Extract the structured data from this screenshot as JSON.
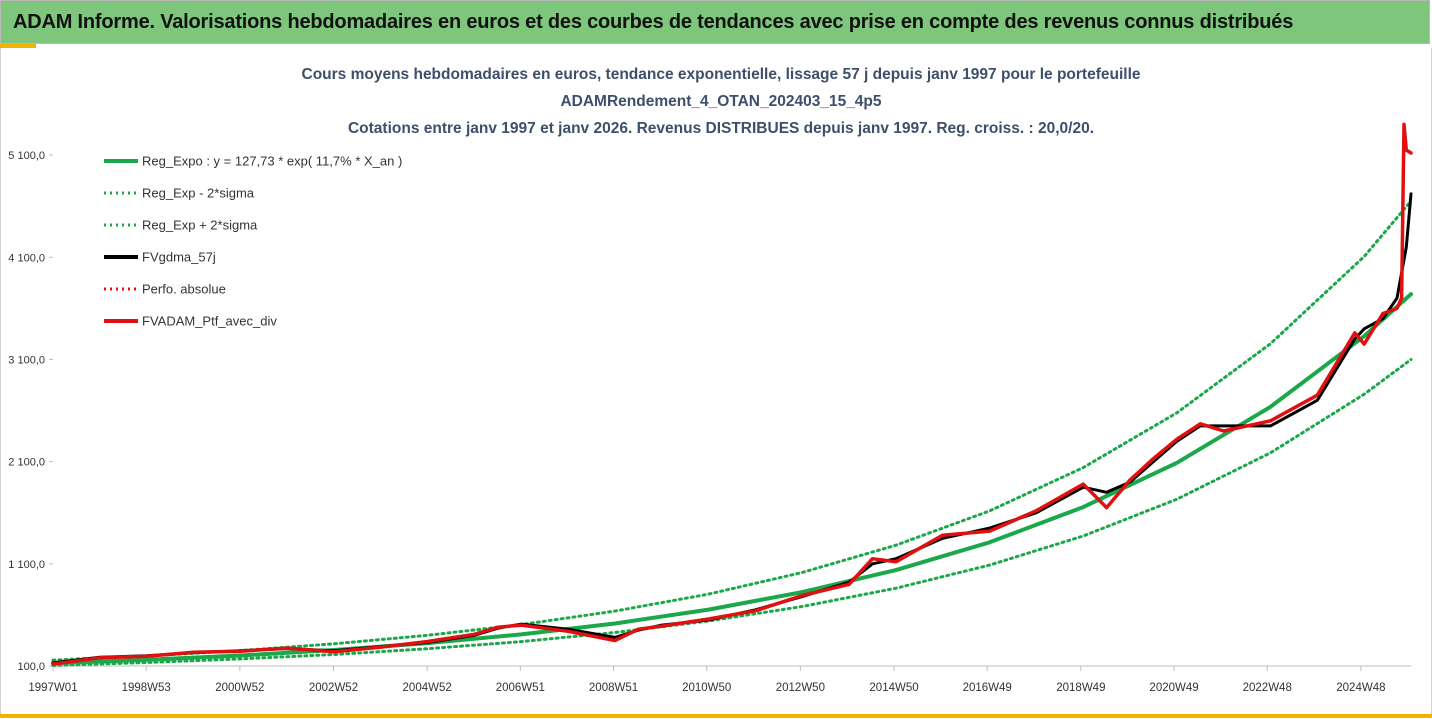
{
  "header": {
    "title": "ADAM Informe. Valorisations hebdomadaires en euros et des courbes de tendances avec prise en compte des revenus connus distribués"
  },
  "colors": {
    "green": "#1aa84a",
    "black": "#000000",
    "red": "#e01010",
    "header_bg": "#7dc67c",
    "accent": "#f2b300"
  },
  "chart_data": {
    "type": "line",
    "title_lines": [
      "Cours moyens hebdomadaires  en euros, tendance exponentielle, lissage 57 j depuis janv 1997 pour le portefeuille",
      "ADAMRendement_4_OTAN_202403_15_4p5",
      "Cotations entre janv 1997 et janv 2026. Revenus DISTRIBUES depuis janv 1997. Reg. croiss. : 20,0/20."
    ],
    "xlabel": "",
    "ylabel": "",
    "ylim": [
      100,
      5600
    ],
    "xlim": [
      1997.0,
      2026.0
    ],
    "y_ticks": [
      100,
      1100,
      2100,
      3100,
      4100,
      5100
    ],
    "y_tick_labels": [
      "100,0",
      "1 100,0",
      "2 100,0",
      "3 100,0",
      "4 100,0",
      "5 100,0"
    ],
    "x_ticks": [
      1997.0,
      1998.99,
      2000.99,
      2002.99,
      2004.99,
      2006.98,
      2008.97,
      2010.96,
      2012.96,
      2014.96,
      2016.95,
      2018.95,
      2020.94,
      2022.93,
      2024.93
    ],
    "x_tick_labels": [
      "1997W01",
      "1998W53",
      "2000W52",
      "2002W52",
      "2004W52",
      "2006W51",
      "2008W51",
      "2010W50",
      "2012W50",
      "2014W50",
      "2016W49",
      "2018W49",
      "2020W49",
      "2022W48",
      "2024W48"
    ],
    "grid": false,
    "legend_position": "top-left",
    "legend": [
      {
        "label": "Reg_Expo : y = 127,73 * exp( 11,7% *  X_an )",
        "color": "#1aa84a",
        "style": "solid"
      },
      {
        "label": "Reg_Exp - 2*sigma",
        "color": "#1aa84a",
        "style": "dotted"
      },
      {
        "label": "Reg_Exp + 2*sigma",
        "color": "#1aa84a",
        "style": "dotted"
      },
      {
        "label": "FVgdma_57j",
        "color": "#000000",
        "style": "solid"
      },
      {
        "label": "Perfo. absolue",
        "color": "#e01010",
        "style": "dotted"
      },
      {
        "label": "FVADAM_Ptf_avec_div",
        "color": "#e01010",
        "style": "solid"
      }
    ],
    "series": [
      {
        "name": "Reg_Expo : y = 127,73 * exp( 11,7% *  X_an )",
        "x": [
          1997.0,
          1999.0,
          2001.0,
          2003.0,
          2005.0,
          2007.0,
          2009.0,
          2011.0,
          2013.0,
          2015.0,
          2017.0,
          2019.0,
          2021.0,
          2023.0,
          2025.0,
          2026.0
        ],
        "y": [
          128,
          161,
          203,
          257,
          324,
          409,
          516,
          652,
          823,
          1039,
          1311,
          1655,
          2089,
          2637,
          3328,
          3740
        ]
      },
      {
        "name": "Reg_Exp - 2*sigma",
        "x": [
          1997.0,
          1999.0,
          2001.0,
          2003.0,
          2005.0,
          2007.0,
          2009.0,
          2011.0,
          2013.0,
          2015.0,
          2017.0,
          2019.0,
          2021.0,
          2023.0,
          2025.0,
          2026.0
        ],
        "y": [
          106,
          134,
          169,
          213,
          269,
          339,
          428,
          540,
          682,
          861,
          1087,
          1372,
          1732,
          2186,
          2760,
          3100
        ]
      },
      {
        "name": "Reg_Exp + 2*sigma",
        "x": [
          1997.0,
          1999.0,
          2001.0,
          2003.0,
          2005.0,
          2007.0,
          2009.0,
          2011.0,
          2013.0,
          2015.0,
          2017.0,
          2019.0,
          2021.0,
          2023.0,
          2025.0,
          2026.0
        ],
        "y": [
          158,
          199,
          251,
          317,
          400,
          505,
          637,
          804,
          1015,
          1282,
          1618,
          2042,
          2578,
          3254,
          4108,
          4650
        ]
      },
      {
        "name": "FVgdma_57j",
        "x": [
          1997.0,
          1998.0,
          1999.0,
          2000.0,
          2001.0,
          2002.0,
          2003.0,
          2004.0,
          2005.0,
          2006.0,
          2006.5,
          2007.0,
          2008.0,
          2009.0,
          2009.5,
          2010.0,
          2011.0,
          2012.0,
          2013.0,
          2014.0,
          2014.5,
          2015.0,
          2016.0,
          2017.0,
          2018.0,
          2019.0,
          2019.5,
          2020.0,
          2020.5,
          2021.0,
          2021.5,
          2022.0,
          2023.0,
          2024.0,
          2024.8,
          2025.0,
          2025.4,
          2025.7,
          2025.9,
          2026.0
        ],
        "y": [
          130,
          185,
          200,
          230,
          250,
          270,
          250,
          290,
          330,
          400,
          470,
          510,
          460,
          380,
          450,
          500,
          550,
          650,
          780,
          920,
          1100,
          1150,
          1350,
          1450,
          1600,
          1850,
          1800,
          1900,
          2100,
          2300,
          2450,
          2450,
          2450,
          2700,
          3300,
          3400,
          3500,
          3700,
          4200,
          4720
        ]
      },
      {
        "name": "Perfo. absolue",
        "x": [
          1997.0,
          1998.0,
          1999.0,
          2000.0,
          2001.0,
          2002.0,
          2003.0,
          2004.0,
          2005.0,
          2006.0,
          2006.5,
          2007.0,
          2008.0,
          2009.0,
          2009.5,
          2010.0,
          2011.0,
          2012.0,
          2013.0,
          2014.0,
          2014.5,
          2015.0,
          2016.0,
          2017.0,
          2018.0,
          2019.0,
          2019.5,
          2020.0,
          2020.5,
          2021.0,
          2021.5,
          2022.0,
          2023.0,
          2024.0,
          2024.8,
          2025.0,
          2025.4,
          2025.7,
          2025.8,
          2025.85,
          2025.9,
          2026.0
        ],
        "y": [
          120,
          180,
          195,
          235,
          245,
          275,
          240,
          285,
          340,
          410,
          480,
          500,
          440,
          350,
          460,
          490,
          560,
          640,
          790,
          900,
          1150,
          1120,
          1380,
          1420,
          1620,
          1880,
          1650,
          1920,
          2130,
          2320,
          2470,
          2400,
          2500,
          2750,
          3360,
          3250,
          3550,
          3600,
          3700,
          5400,
          5150,
          5120
        ]
      },
      {
        "name": "FVADAM_Ptf_avec_div",
        "x": [
          1997.0,
          1998.0,
          1999.0,
          2000.0,
          2001.0,
          2002.0,
          2003.0,
          2004.0,
          2005.0,
          2006.0,
          2006.5,
          2007.0,
          2008.0,
          2009.0,
          2009.5,
          2010.0,
          2011.0,
          2012.0,
          2013.0,
          2014.0,
          2014.5,
          2015.0,
          2016.0,
          2017.0,
          2018.0,
          2019.0,
          2019.5,
          2020.0,
          2020.5,
          2021.0,
          2021.5,
          2022.0,
          2023.0,
          2024.0,
          2024.8,
          2025.0,
          2025.4,
          2025.7,
          2025.8,
          2025.85,
          2025.9,
          2026.0
        ],
        "y": [
          120,
          180,
          195,
          235,
          245,
          275,
          240,
          285,
          340,
          410,
          480,
          500,
          440,
          350,
          460,
          490,
          560,
          640,
          790,
          900,
          1150,
          1120,
          1380,
          1420,
          1620,
          1880,
          1650,
          1920,
          2130,
          2320,
          2470,
          2400,
          2500,
          2750,
          3360,
          3250,
          3550,
          3600,
          3700,
          5400,
          5150,
          5120
        ]
      }
    ]
  }
}
